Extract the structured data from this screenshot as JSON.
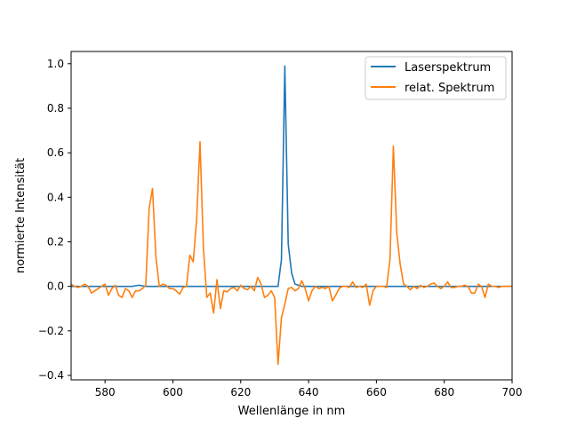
{
  "chart_data": {
    "type": "line",
    "title": "",
    "xlabel": "Wellenlänge in nm",
    "ylabel": "normierte Intensität",
    "xlim": [
      570,
      700
    ],
    "ylim": [
      -0.42,
      1.055
    ],
    "xticks": [
      580,
      600,
      620,
      640,
      660,
      680,
      700
    ],
    "yticks": [
      -0.4,
      -0.2,
      0.0,
      0.2,
      0.4,
      0.6,
      0.8,
      1.0
    ],
    "ytick_labels": [
      "−0.4",
      "−0.2",
      "0.0",
      "0.2",
      "0.4",
      "0.6",
      "0.8",
      "1.0"
    ],
    "grid": false,
    "legend_position": "top-right",
    "series": [
      {
        "name": "Laserspektrum",
        "color": "#1f77b4",
        "x": [
          570,
          575,
          580,
          585,
          588,
          590,
          592,
          595,
          600,
          605,
          610,
          615,
          620,
          625,
          628,
          630,
          631,
          632,
          633,
          634,
          635,
          636,
          638,
          640,
          645,
          650,
          655,
          660,
          665,
          668,
          670,
          675,
          680,
          685,
          690,
          695,
          698,
          700
        ],
        "values": [
          0.0,
          0.0,
          0.0,
          0.0,
          0.0,
          0.005,
          0.0,
          0.0,
          0.0,
          0.0,
          0.0,
          0.0,
          0.0,
          0.0,
          0.0,
          0.0,
          0.0,
          0.12,
          0.99,
          0.19,
          0.06,
          0.01,
          0.0,
          0.0,
          0.0,
          0.0,
          0.0,
          0.0,
          0.0,
          0.0,
          0.0,
          0.0,
          0.0,
          0.0,
          0.0,
          0.0,
          0.0,
          0.0
        ]
      },
      {
        "name": "relat. Spektrum",
        "color": "#ff7f0e",
        "x": [
          570,
          571,
          572,
          573,
          574,
          575,
          576,
          577,
          578,
          579,
          580,
          581,
          582,
          583,
          584,
          585,
          586,
          587,
          588,
          589,
          590,
          591,
          592,
          593,
          594,
          595,
          596,
          597,
          598,
          599,
          600,
          601,
          602,
          603,
          604,
          605,
          606,
          607,
          608,
          609,
          610,
          611,
          612,
          613,
          614,
          615,
          616,
          617,
          618,
          619,
          620,
          621,
          622,
          623,
          624,
          625,
          626,
          627,
          628,
          629,
          630,
          631,
          632,
          633,
          634,
          635,
          636,
          637,
          638,
          639,
          640,
          641,
          642,
          643,
          644,
          645,
          646,
          647,
          648,
          649,
          650,
          651,
          652,
          653,
          654,
          655,
          656,
          657,
          658,
          659,
          660,
          661,
          662,
          663,
          664,
          665,
          666,
          667,
          668,
          669,
          670,
          671,
          672,
          673,
          674,
          675,
          676,
          677,
          678,
          679,
          680,
          681,
          682,
          683,
          684,
          685,
          686,
          687,
          688,
          689,
          690,
          691,
          692,
          693,
          694,
          695,
          696,
          697,
          698,
          699,
          700
        ],
        "values": [
          0.01,
          0.0,
          -0.005,
          0.0,
          0.01,
          0.0,
          -0.03,
          -0.02,
          -0.01,
          0.0,
          0.01,
          -0.04,
          -0.01,
          0.005,
          -0.04,
          -0.05,
          -0.01,
          -0.02,
          -0.05,
          -0.02,
          -0.02,
          -0.01,
          0.005,
          0.35,
          0.44,
          0.13,
          0.0,
          0.01,
          0.005,
          -0.01,
          -0.01,
          -0.02,
          -0.035,
          -0.005,
          0.0,
          0.14,
          0.11,
          0.3,
          0.65,
          0.17,
          -0.05,
          -0.03,
          -0.12,
          0.03,
          -0.1,
          -0.02,
          -0.025,
          -0.01,
          -0.005,
          -0.02,
          0.005,
          -0.01,
          -0.015,
          0.0,
          -0.02,
          0.04,
          0.01,
          -0.05,
          -0.04,
          -0.02,
          -0.05,
          -0.35,
          -0.14,
          -0.08,
          -0.01,
          -0.005,
          -0.02,
          -0.01,
          0.025,
          -0.01,
          -0.065,
          -0.02,
          0.0,
          -0.01,
          -0.005,
          -0.01,
          0.0,
          -0.065,
          -0.04,
          -0.01,
          0.0,
          0.0,
          -0.005,
          0.02,
          -0.005,
          0.0,
          -0.005,
          0.01,
          -0.085,
          -0.02,
          0.0,
          0.0,
          0.0,
          -0.005,
          0.12,
          0.63,
          0.24,
          0.1,
          0.01,
          0.0,
          -0.015,
          0.0,
          -0.01,
          0.005,
          -0.005,
          0.0,
          0.01,
          0.015,
          0.0,
          -0.01,
          0.0,
          0.02,
          -0.005,
          -0.005,
          0.0,
          0.0,
          0.005,
          0.0,
          -0.03,
          -0.03,
          0.01,
          0.0,
          -0.05,
          0.01,
          0.0,
          0.0,
          -0.005,
          0.0,
          0.0,
          0.0,
          0.0
        ]
      }
    ]
  }
}
